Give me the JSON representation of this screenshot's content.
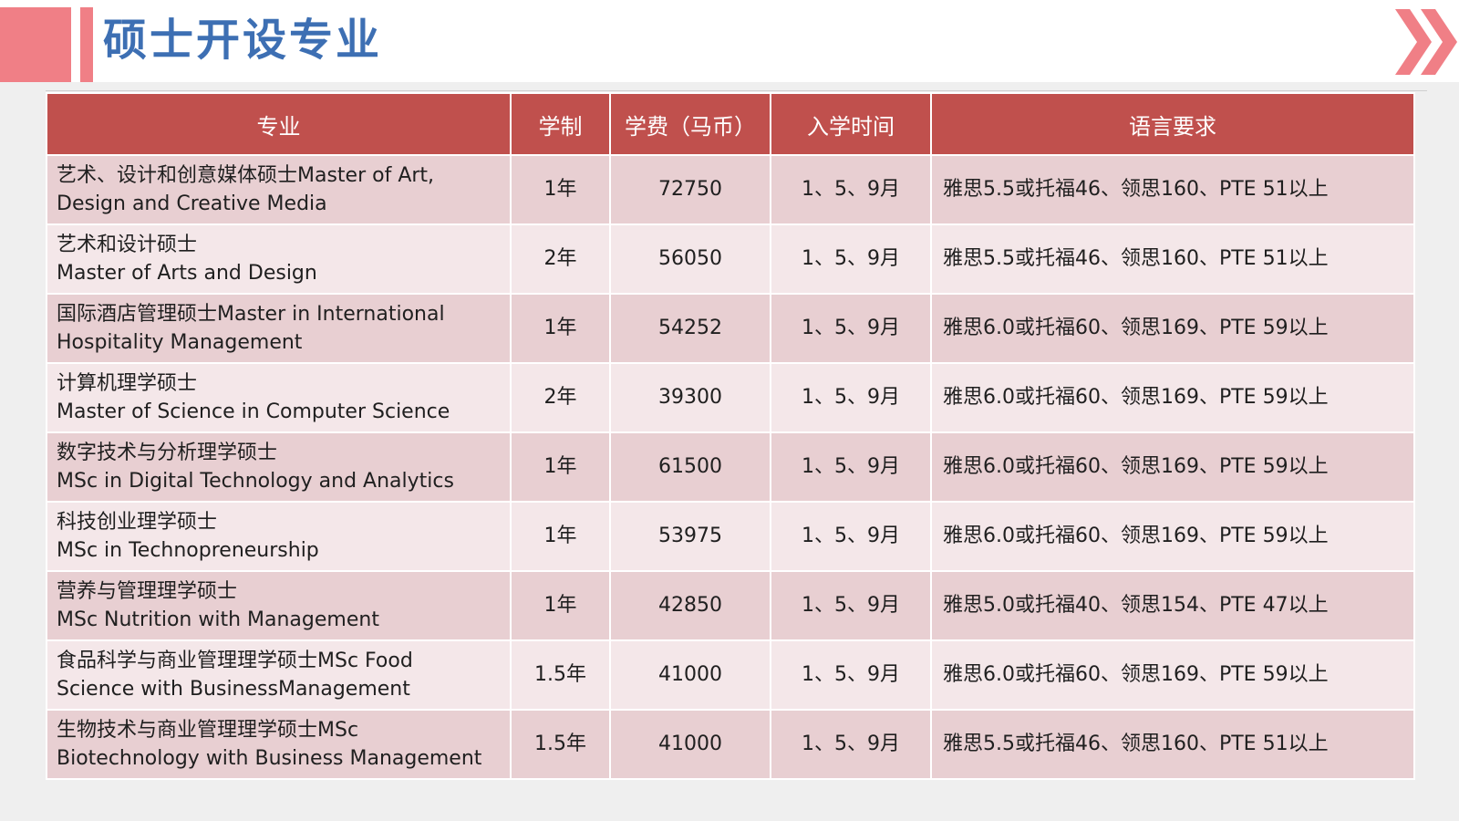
{
  "header": {
    "title": "硕士开设专业"
  },
  "table": {
    "columns": [
      "专业",
      "学制",
      "学费（马币）",
      "入学时间",
      "语言要求"
    ],
    "rows": [
      {
        "major_line1": "艺术、设计和创意媒体硕士Master of Art,",
        "major_line2": "Design and Creative Media",
        "duration": "1年",
        "fee": "72750",
        "intake": "1、5、9月",
        "language": "雅思5.5或托福46、领思160、PTE 51以上"
      },
      {
        "major_line1": "艺术和设计硕士",
        "major_line2": "Master of Arts and Design",
        "duration": "2年",
        "fee": "56050",
        "intake": "1、5、9月",
        "language": "雅思5.5或托福46、领思160、PTE 51以上"
      },
      {
        "major_line1": "国际酒店管理硕士Master in International",
        "major_line2": "Hospitality Management",
        "duration": "1年",
        "fee": "54252",
        "intake": "1、5、9月",
        "language": "雅思6.0或托福60、领思169、PTE 59以上"
      },
      {
        "major_line1": "计算机理学硕士",
        "major_line2": "Master of Science in Computer Science",
        "duration": "2年",
        "fee": "39300",
        "intake": "1、5、9月",
        "language": "雅思6.0或托福60、领思169、PTE 59以上"
      },
      {
        "major_line1": "数字技术与分析理学硕士",
        "major_line2": "MSc in Digital Technology and Analytics",
        "duration": "1年",
        "fee": "61500",
        "intake": "1、5、9月",
        "language": "雅思6.0或托福60、领思169、PTE 59以上"
      },
      {
        "major_line1": "科技创业理学硕士",
        "major_line2": "MSc in Technopreneurship",
        "duration": "1年",
        "fee": "53975",
        "intake": "1、5、9月",
        "language": "雅思6.0或托福60、领思169、PTE 59以上"
      },
      {
        "major_line1": "营养与管理理学硕士",
        "major_line2": "MSc Nutrition with Management",
        "duration": "1年",
        "fee": "42850",
        "intake": "1、5、9月",
        "language": "雅思5.0或托福40、领思154、PTE 47以上"
      },
      {
        "major_line1": "食品科学与商业管理理学硕士MSc Food",
        "major_line2": "Science with BusinessManagement",
        "duration": "1.5年",
        "fee": "41000",
        "intake": "1、5、9月",
        "language": "雅思6.0或托福60、领思169、PTE 59以上"
      },
      {
        "major_line1": "生物技术与商业管理理学硕士MSc",
        "major_line2": "Biotechnology with Business Management",
        "duration": "1.5年",
        "fee": "41000",
        "intake": "1、5、9月",
        "language": "雅思5.5或托福46、领思160、PTE 51以上"
      }
    ]
  },
  "colors": {
    "accent_pink": "#f07f86",
    "title_blue": "#3d6fb3",
    "header_red": "#c0504d",
    "row_dark": "#e8cfd2",
    "row_light": "#f4e7e9"
  },
  "icons": {
    "decor_right": "double-chevron-right-icon"
  }
}
